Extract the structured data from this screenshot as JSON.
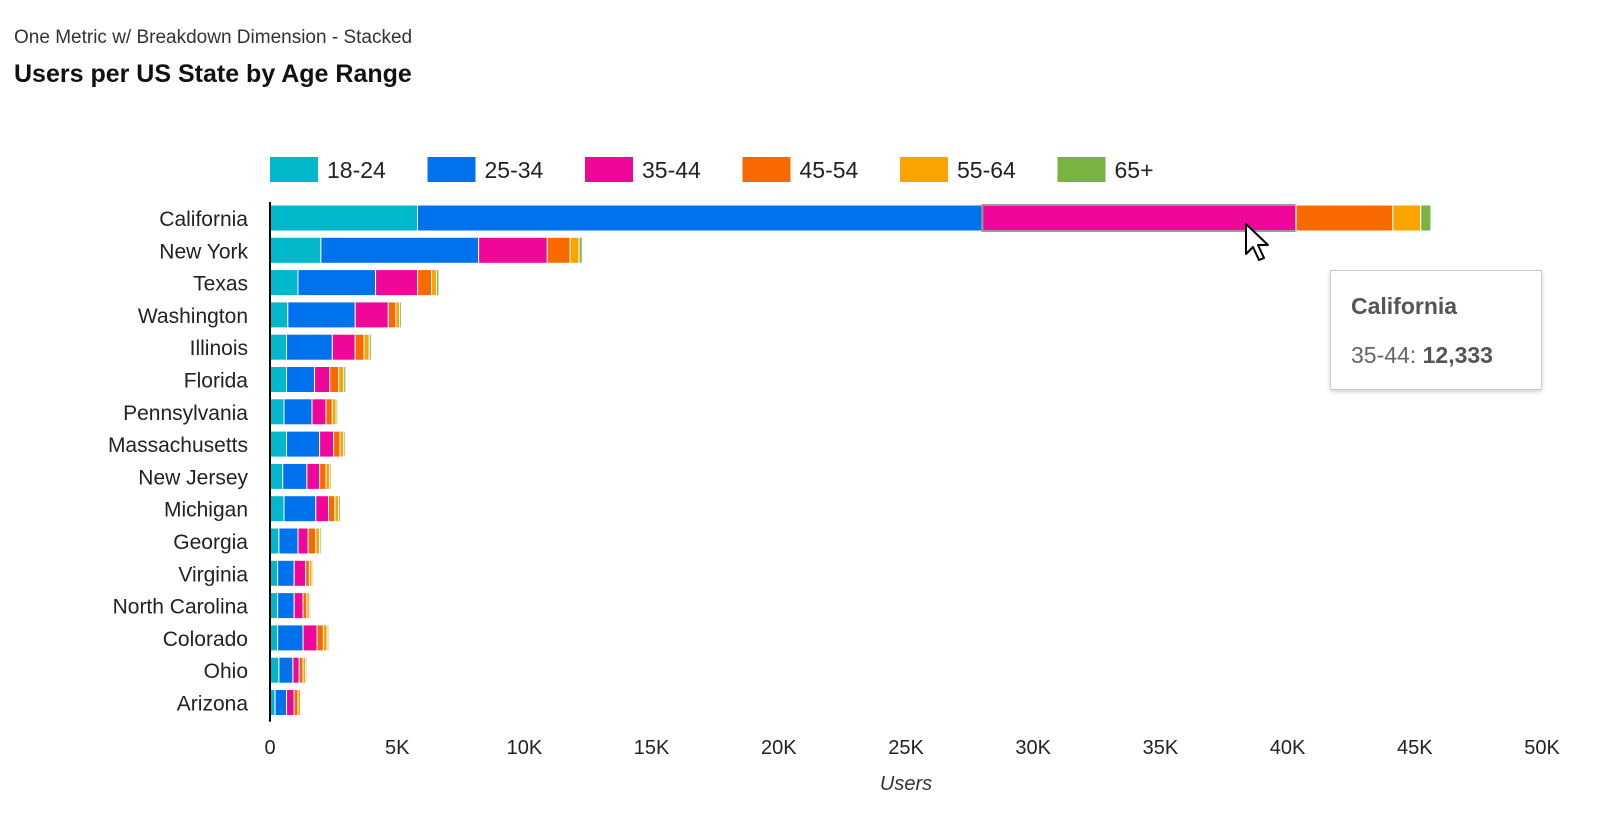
{
  "chart_data": {
    "type": "bar",
    "orientation": "horizontal",
    "stacked": true,
    "subtitle": "One Metric w/ Breakdown Dimension - Stacked",
    "title": "Users per US State by Age Range",
    "xlabel": "Users",
    "ylabel": "",
    "xlim": [
      0,
      50000
    ],
    "x_ticks": [
      0,
      5000,
      10000,
      15000,
      20000,
      25000,
      30000,
      35000,
      40000,
      45000,
      50000
    ],
    "x_tick_labels": [
      "0",
      "5K",
      "10K",
      "15K",
      "20K",
      "25K",
      "30K",
      "35K",
      "40K",
      "45K",
      "50K"
    ],
    "grid": false,
    "legend_position": "top",
    "categories": [
      "California",
      "New York",
      "Texas",
      "Washington",
      "Illinois",
      "Florida",
      "Pennsylvania",
      "Massachusetts",
      "New Jersey",
      "Michigan",
      "Georgia",
      "Virginia",
      "North Carolina",
      "Colorado",
      "Ohio",
      "Arizona"
    ],
    "series": [
      {
        "name": "18-24",
        "color": "#00b7cc",
        "values": [
          5800,
          2000,
          1100,
          700,
          650,
          650,
          550,
          650,
          500,
          550,
          350,
          300,
          300,
          300,
          350,
          200
        ]
      },
      {
        "name": "25-34",
        "color": "#0072ee",
        "values": [
          22200,
          6200,
          3050,
          2650,
          1800,
          1100,
          1100,
          1300,
          950,
          1250,
          750,
          650,
          650,
          1000,
          550,
          450
        ]
      },
      {
        "name": "35-44",
        "color": "#f0079a",
        "values": [
          12333,
          2700,
          1650,
          1300,
          900,
          600,
          550,
          550,
          500,
          500,
          400,
          450,
          350,
          550,
          250,
          300
        ]
      },
      {
        "name": "45-54",
        "color": "#f86a00",
        "values": [
          3800,
          900,
          550,
          300,
          350,
          350,
          250,
          250,
          250,
          250,
          300,
          150,
          150,
          250,
          150,
          150
        ]
      },
      {
        "name": "55-64",
        "color": "#fba300",
        "values": [
          1100,
          350,
          200,
          150,
          200,
          200,
          150,
          150,
          150,
          150,
          150,
          100,
          100,
          150,
          100,
          100
        ]
      },
      {
        "name": "65+",
        "color": "#7ab243",
        "values": [
          400,
          120,
          90,
          70,
          80,
          80,
          60,
          60,
          60,
          70,
          60,
          50,
          50,
          60,
          50,
          40
        ]
      }
    ]
  },
  "tooltip": {
    "category": "California",
    "series_label": "35-44:",
    "value": "12,333"
  },
  "hover": {
    "category_index": 0,
    "series_index": 2
  },
  "cursor_icon": "arrow-pointer-icon"
}
